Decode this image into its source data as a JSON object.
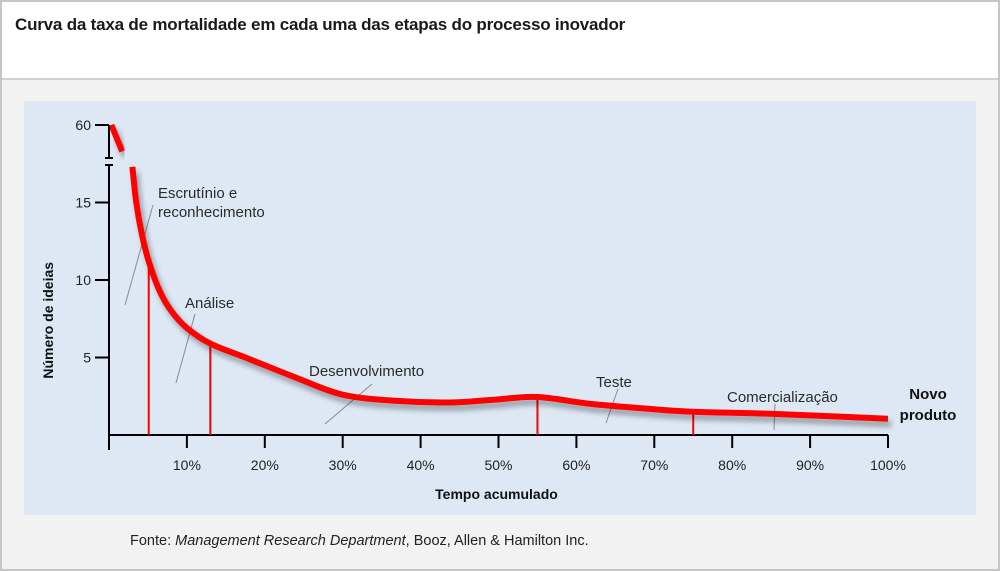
{
  "header": {
    "title": "Curva da taxa de mortalidade em cada uma das etapas do processo inovador"
  },
  "source": {
    "prefix": "Fonte: ",
    "italic": "Management Research Department",
    "suffix": ", Booz, Allen & Hamilton Inc."
  },
  "colors": {
    "curve": "#ff0000",
    "axis": "#000000",
    "panel": "#dde8f4",
    "leader": "#8a8a8a"
  },
  "chart_data": {
    "type": "line",
    "title": "Curva da taxa de mortalidade em cada uma das etapas do processo inovador",
    "xlabel": "Tempo acumulado",
    "ylabel": "Número de ideias",
    "xlim": [
      0,
      100
    ],
    "ylim": [
      0,
      60
    ],
    "y_axis_break": [
      17.5,
      55
    ],
    "grid": false,
    "x_ticks": [
      10,
      20,
      30,
      40,
      50,
      60,
      70,
      80,
      90,
      100
    ],
    "x_tick_labels": [
      "10%",
      "20%",
      "30%",
      "40%",
      "50%",
      "60%",
      "70%",
      "80%",
      "90%",
      "100%"
    ],
    "y_ticks": [
      5,
      10,
      15,
      60
    ],
    "y_tick_labels": [
      "5",
      "10",
      "15",
      "60"
    ],
    "series": [
      {
        "name": "Número de ideias",
        "x": [
          0.3,
          1.7,
          3.0,
          3.5,
          4.2,
          5.1,
          6.5,
          8.0,
          10.0,
          13.0,
          18.0,
          24.0,
          30.0,
          37.0,
          44.0,
          50.0,
          55.0,
          62.0,
          69.0,
          75.0,
          86.0,
          100.0
        ],
        "y": [
          60,
          56,
          17.3,
          15.0,
          13.0,
          11.2,
          9.3,
          8.0,
          6.9,
          5.9,
          4.9,
          3.7,
          2.6,
          2.2,
          2.1,
          2.3,
          2.45,
          2.0,
          1.7,
          1.5,
          1.35,
          1.05
        ]
      }
    ],
    "stage_boundaries": [
      {
        "x": 5.1,
        "y": 11.2
      },
      {
        "x": 13.0,
        "y": 5.9
      },
      {
        "x": 55.0,
        "y": 2.45
      },
      {
        "x": 75.0,
        "y": 1.5
      }
    ],
    "annotations": [
      {
        "text": [
          "Escrutínio e",
          "reconhecimento"
        ],
        "stage": "Escrutínio e reconhecimento"
      },
      {
        "text": [
          "Análise"
        ],
        "stage": "Análise"
      },
      {
        "text": [
          "Desenvolvimento"
        ],
        "stage": "Desenvolvimento"
      },
      {
        "text": [
          "Teste"
        ],
        "stage": "Teste"
      },
      {
        "text": [
          "Comercialização"
        ],
        "stage": "Comercialização"
      }
    ],
    "end_label": [
      "Novo",
      "produto"
    ]
  }
}
